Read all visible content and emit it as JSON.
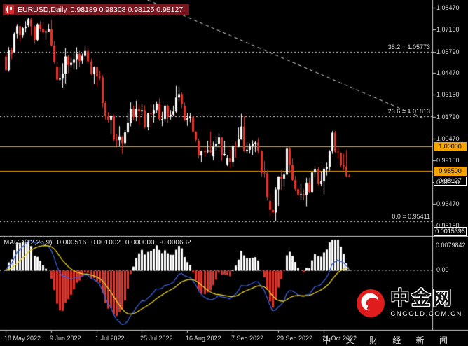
{
  "header": {
    "symbol": "EURUSD,Daily",
    "ohlc": "0.98189 0.98308 0.98125 0.98127"
  },
  "colors": {
    "background": "#000000",
    "bull": "#ffffff",
    "bear": "#e3342b",
    "hline": "#f5a300",
    "fib_line": "#d8d8d8",
    "macd_line": "#3a5fd9",
    "macd_signal": "#e8d225",
    "hist_up": "#ffffff",
    "hist_down": "#e3342b",
    "header_bg": "#7a161d",
    "axis_text": "#dedede",
    "level_box_bg": "#f5a300",
    "logo_red": "#e01c1c"
  },
  "price_axis": {
    "ticks": [
      "1.08470",
      "1.07150",
      "1.05790",
      "1.04470",
      "1.03150",
      "1.01790",
      "1.00470",
      "0.99150",
      "0.97790",
      "0.96470",
      "0.95150"
    ],
    "level_boxes": [
      "1.00000",
      "0.98500"
    ],
    "current_box": "0.98127"
  },
  "watermark": {
    "brand": "中金网",
    "site": "CNGOLD.COM.CN",
    "tagline": "中 文 财 经 新 闻"
  },
  "chart_data": {
    "type": "candlestick",
    "symbol": "EURUSD",
    "timeframe": "Daily",
    "title": "EURUSD,Daily",
    "price_ylim": [
      0.945,
      1.0895
    ],
    "x_ticks": [
      {
        "i": 0,
        "label": "18 May 2022"
      },
      {
        "i": 16,
        "label": "9 Jun 2022"
      },
      {
        "i": 32,
        "label": "1 Jul 2022"
      },
      {
        "i": 48,
        "label": "25 Jul 2022"
      },
      {
        "i": 64,
        "label": "16 Aug 2022"
      },
      {
        "i": 80,
        "label": "7 Sep 2022"
      },
      {
        "i": 96,
        "label": "29 Sep 2022"
      },
      {
        "i": 112,
        "label": "21 Oct 2022"
      }
    ],
    "bars": [
      [
        "2022-05-18",
        1.0549,
        1.0564,
        1.0461,
        1.0465
      ],
      [
        "2022-05-19",
        1.0465,
        1.0607,
        1.0456,
        1.0586
      ],
      [
        "2022-05-20",
        1.0586,
        1.0604,
        1.0533,
        1.0563
      ],
      [
        "2022-05-23",
        1.0575,
        1.0697,
        1.0572,
        1.069
      ],
      [
        "2022-05-24",
        1.069,
        1.0748,
        1.0661,
        1.0735
      ],
      [
        "2022-05-25",
        1.0735,
        1.0739,
        1.0641,
        1.068
      ],
      [
        "2022-05-26",
        1.068,
        1.073,
        1.0664,
        1.0723
      ],
      [
        "2022-05-27",
        1.0723,
        1.0765,
        1.0697,
        1.0733
      ],
      [
        "2022-05-30",
        1.074,
        1.0787,
        1.0727,
        1.0778
      ],
      [
        "2022-05-31",
        1.0778,
        1.0787,
        1.0678,
        1.0734
      ],
      [
        "2022-06-01",
        1.0734,
        1.0739,
        1.0627,
        1.0651
      ],
      [
        "2022-06-02",
        1.0651,
        1.0752,
        1.0642,
        1.0747
      ],
      [
        "2022-06-03",
        1.0747,
        1.0764,
        1.0703,
        1.0719
      ],
      [
        "2022-06-06",
        1.0719,
        1.0758,
        1.0684,
        1.0697
      ],
      [
        "2022-06-07",
        1.0697,
        1.0713,
        1.0653,
        1.0703
      ],
      [
        "2022-06-08",
        1.0703,
        1.0749,
        1.0698,
        1.0716
      ],
      [
        "2022-06-09",
        1.0716,
        1.0774,
        1.0611,
        1.0617
      ],
      [
        "2022-06-10",
        1.0617,
        1.0643,
        1.0505,
        1.0518
      ],
      [
        "2022-06-13",
        1.0488,
        1.0509,
        1.0399,
        1.0408
      ],
      [
        "2022-06-14",
        1.0408,
        1.0485,
        1.0397,
        1.0414
      ],
      [
        "2022-06-15",
        1.0414,
        1.0508,
        1.0359,
        1.0444
      ],
      [
        "2022-06-16",
        1.0444,
        1.0601,
        1.0381,
        1.055
      ],
      [
        "2022-06-17",
        1.055,
        1.0557,
        1.0445,
        1.0497
      ],
      [
        "2022-06-20",
        1.0497,
        1.0546,
        1.0481,
        1.0511
      ],
      [
        "2022-06-21",
        1.0511,
        1.0582,
        1.0469,
        1.0533
      ],
      [
        "2022-06-22",
        1.0533,
        1.0606,
        1.0469,
        1.0566
      ],
      [
        "2022-06-23",
        1.0566,
        1.0583,
        1.0482,
        1.0523
      ],
      [
        "2022-06-24",
        1.0523,
        1.0567,
        1.0503,
        1.0553
      ],
      [
        "2022-06-27",
        1.0553,
        1.0615,
        1.0547,
        1.0583
      ],
      [
        "2022-06-28",
        1.0583,
        1.0606,
        1.0503,
        1.0519
      ],
      [
        "2022-06-29",
        1.0519,
        1.0536,
        1.0435,
        1.0442
      ],
      [
        "2022-06-30",
        1.0442,
        1.0489,
        1.038,
        1.0484
      ],
      [
        "2022-07-01",
        1.0484,
        1.0486,
        1.0365,
        1.0426
      ],
      [
        "2022-07-04",
        1.0426,
        1.0461,
        1.0406,
        1.0421
      ],
      [
        "2022-07-05",
        1.0421,
        1.0435,
        1.0236,
        1.0265
      ],
      [
        "2022-07-06",
        1.0265,
        1.0277,
        1.0162,
        1.0183
      ],
      [
        "2022-07-07",
        1.0183,
        1.0208,
        1.0143,
        1.016
      ],
      [
        "2022-07-08",
        1.016,
        1.019,
        1.0072,
        1.0186
      ],
      [
        "2022-07-11",
        1.0186,
        1.0193,
        1.003,
        1.004
      ],
      [
        "2022-07-12",
        1.004,
        1.0074,
        0.9998,
        1.0037
      ],
      [
        "2022-07-13",
        1.0037,
        1.0122,
        1.0,
        1.006
      ],
      [
        "2022-07-14",
        1.006,
        1.0062,
        0.9952,
        1.0019
      ],
      [
        "2022-07-15",
        1.0019,
        1.0098,
        1.0006,
        1.0086
      ],
      [
        "2022-07-18",
        1.0086,
        1.0201,
        1.0076,
        1.0144
      ],
      [
        "2022-07-19",
        1.0144,
        1.0269,
        1.0121,
        1.0227
      ],
      [
        "2022-07-20",
        1.0227,
        1.025,
        1.0157,
        1.018
      ],
      [
        "2022-07-21",
        1.018,
        1.0279,
        1.0153,
        1.0229
      ],
      [
        "2022-07-22",
        1.0229,
        1.0257,
        1.0131,
        1.0213
      ],
      [
        "2022-07-25",
        1.0213,
        1.0258,
        1.0183,
        1.022
      ],
      [
        "2022-07-26",
        1.022,
        1.025,
        1.0108,
        1.0116
      ],
      [
        "2022-07-27",
        1.0116,
        1.0203,
        1.0097,
        1.0201
      ],
      [
        "2022-07-28",
        1.0201,
        1.0254,
        1.0113,
        1.0197
      ],
      [
        "2022-07-29",
        1.0197,
        1.0255,
        1.0145,
        1.0221
      ],
      [
        "2022-08-01",
        1.0221,
        1.0275,
        1.02,
        1.026
      ],
      [
        "2022-08-02",
        1.026,
        1.0293,
        1.0155,
        1.0165
      ],
      [
        "2022-08-03",
        1.0165,
        1.021,
        1.0122,
        1.0166
      ],
      [
        "2022-08-04",
        1.0166,
        1.0254,
        1.0151,
        1.0247
      ],
      [
        "2022-08-05",
        1.0247,
        1.0253,
        1.0141,
        1.0181
      ],
      [
        "2022-08-08",
        1.0181,
        1.0221,
        1.0161,
        1.0193
      ],
      [
        "2022-08-09",
        1.0193,
        1.0248,
        1.0186,
        1.0212
      ],
      [
        "2022-08-10",
        1.0212,
        1.0369,
        1.0202,
        1.0298
      ],
      [
        "2022-08-11",
        1.0298,
        1.0365,
        1.0276,
        1.0319
      ],
      [
        "2022-08-12",
        1.0319,
        1.033,
        1.0233,
        1.0258
      ],
      [
        "2022-08-15",
        1.0246,
        1.0268,
        1.0154,
        1.0159
      ],
      [
        "2022-08-16",
        1.0159,
        1.0203,
        1.0124,
        1.0171
      ],
      [
        "2022-08-17",
        1.0171,
        1.0203,
        1.0147,
        1.018
      ],
      [
        "2022-08-18",
        1.018,
        1.0191,
        1.008,
        1.0088
      ],
      [
        "2022-08-19",
        1.0088,
        1.0092,
        1.0026,
        1.0039
      ],
      [
        "2022-08-22",
        1.0034,
        1.0047,
        0.9926,
        0.9943
      ],
      [
        "2022-08-23",
        0.9943,
        0.9974,
        0.99,
        0.9969
      ],
      [
        "2022-08-24",
        0.9969,
        0.9991,
        0.9938,
        0.9967
      ],
      [
        "2022-08-25",
        0.9967,
        1.0033,
        0.9956,
        0.9975
      ],
      [
        "2022-08-26",
        0.9975,
        1.009,
        0.9956,
        0.9965
      ],
      [
        "2022-08-29",
        0.9938,
        1.0027,
        0.9914,
        0.9998
      ],
      [
        "2022-08-30",
        0.9998,
        1.0055,
        0.9972,
        1.0015
      ],
      [
        "2022-08-31",
        1.0015,
        1.0079,
        0.9986,
        1.0054
      ],
      [
        "2022-09-01",
        1.0054,
        1.0055,
        0.991,
        0.9945
      ],
      [
        "2022-09-02",
        0.9945,
        1.0033,
        0.994,
        0.9952
      ],
      [
        "2022-09-05",
        0.9888,
        0.9947,
        0.9878,
        0.9928
      ],
      [
        "2022-09-06",
        0.9928,
        0.9986,
        0.9864,
        0.9903
      ],
      [
        "2022-09-07",
        0.9903,
        1.0007,
        0.9875,
        1.0
      ],
      [
        "2022-09-08",
        1.0,
        1.0029,
        0.993,
        0.9995
      ],
      [
        "2022-09-09",
        0.9995,
        1.0114,
        0.9993,
        1.0041
      ],
      [
        "2022-09-12",
        1.0041,
        1.0198,
        1.004,
        1.012
      ],
      [
        "2022-09-13",
        1.012,
        1.0187,
        0.9965,
        0.997
      ],
      [
        "2022-09-14",
        0.997,
        1.0023,
        0.9955,
        0.9978
      ],
      [
        "2022-09-15",
        0.9978,
        1.0018,
        0.9955,
        1.0
      ],
      [
        "2022-09-16",
        1.0,
        1.0036,
        0.9945,
        1.0016
      ],
      [
        "2022-09-19",
        1.0016,
        1.0029,
        0.9964,
        1.0023
      ],
      [
        "2022-09-20",
        1.0023,
        1.0051,
        0.9956,
        0.997
      ],
      [
        "2022-09-21",
        0.997,
        0.9976,
        0.9813,
        0.9838
      ],
      [
        "2022-09-22",
        0.9838,
        0.9908,
        0.9807,
        0.9836
      ],
      [
        "2022-09-23",
        0.9836,
        0.9852,
        0.9667,
        0.969
      ],
      [
        "2022-09-26",
        0.9665,
        0.9709,
        0.9565,
        0.9609
      ],
      [
        "2022-09-27",
        0.9609,
        0.9672,
        0.957,
        0.9594
      ],
      [
        "2022-09-28",
        0.9594,
        0.975,
        0.9541,
        0.9735
      ],
      [
        "2022-09-29",
        0.9735,
        0.9816,
        0.9634,
        0.9815
      ],
      [
        "2022-09-30",
        0.9815,
        0.9853,
        0.9733,
        0.9802
      ],
      [
        "2022-10-03",
        0.9802,
        0.9844,
        0.9751,
        0.9826
      ],
      [
        "2022-10-04",
        0.9826,
        0.9999,
        0.9824,
        0.9985
      ],
      [
        "2022-10-05",
        0.9985,
        0.9998,
        0.9835,
        0.9885
      ],
      [
        "2022-10-06",
        0.9885,
        0.9926,
        0.9787,
        0.9793
      ],
      [
        "2022-10-07",
        0.9793,
        0.9819,
        0.9726,
        0.9737
      ],
      [
        "2022-10-10",
        0.9737,
        0.9749,
        0.9681,
        0.9703
      ],
      [
        "2022-10-11",
        0.9703,
        0.9773,
        0.967,
        0.9706
      ],
      [
        "2022-10-12",
        0.9706,
        0.9736,
        0.9669,
        0.9703
      ],
      [
        "2022-10-13",
        0.9703,
        0.9807,
        0.9632,
        0.9776
      ],
      [
        "2022-10-14",
        0.9776,
        0.9807,
        0.971,
        0.972
      ],
      [
        "2022-10-17",
        0.972,
        0.9848,
        0.9717,
        0.984
      ],
      [
        "2022-10-18",
        0.984,
        0.9876,
        0.9813,
        0.9857
      ],
      [
        "2022-10-19",
        0.9857,
        0.9874,
        0.9758,
        0.9772
      ],
      [
        "2022-10-20",
        0.9772,
        0.9845,
        0.9756,
        0.9785
      ],
      [
        "2022-10-21",
        0.9785,
        0.987,
        0.9705,
        0.9861
      ],
      [
        "2022-10-24",
        0.9861,
        0.9899,
        0.982,
        0.9873
      ],
      [
        "2022-10-25",
        0.9873,
        0.9976,
        0.985,
        0.9968
      ],
      [
        "2022-10-26",
        0.9968,
        1.0093,
        0.9953,
        1.0082
      ],
      [
        "2022-10-27",
        1.0082,
        1.0094,
        0.9959,
        0.9966
      ],
      [
        "2022-10-28",
        0.9966,
        0.9989,
        0.9923,
        0.9965
      ],
      [
        "2022-10-31",
        0.9958,
        0.9962,
        0.9871,
        0.9884
      ],
      [
        "2022-11-01",
        0.9884,
        0.9954,
        0.9853,
        0.9876
      ],
      [
        "2022-11-02",
        0.9876,
        0.9976,
        0.981,
        0.9817
      ],
      [
        "2022-11-03",
        0.98189,
        0.98308,
        0.98125,
        0.98127
      ]
    ],
    "overlays": {
      "hlines": [
        {
          "price": 1.0,
          "label": "1.00000",
          "color": "#f5a300"
        },
        {
          "price": 0.985,
          "label": "0.98500",
          "color": "#f5a300"
        }
      ],
      "fibonacci": [
        {
          "label": "38.2 = 1.05773",
          "price": 1.05773
        },
        {
          "label": "23.6 = 1.01813",
          "price": 1.01813
        },
        {
          "label": "0.0 = 0.95411",
          "price": 0.95411
        }
      ],
      "trendline": {
        "style": "dashed",
        "points": [
          {
            "bar": 50,
            "price": 1.0895
          },
          {
            "bar": 147,
            "price": 1.0172
          }
        ]
      }
    },
    "indicator": {
      "type": "macd",
      "label": "MACD(12,26,9)",
      "params": [
        12,
        26,
        9
      ],
      "values": [
        "0.000516",
        "0.001002",
        "0.000000",
        "-0.000632"
      ],
      "ylim": [
        -0.0145,
        0.008
      ],
      "axis_labels": {
        "top": "0.0079842",
        "zero": "0.00",
        "current": "0.0015396"
      }
    }
  }
}
